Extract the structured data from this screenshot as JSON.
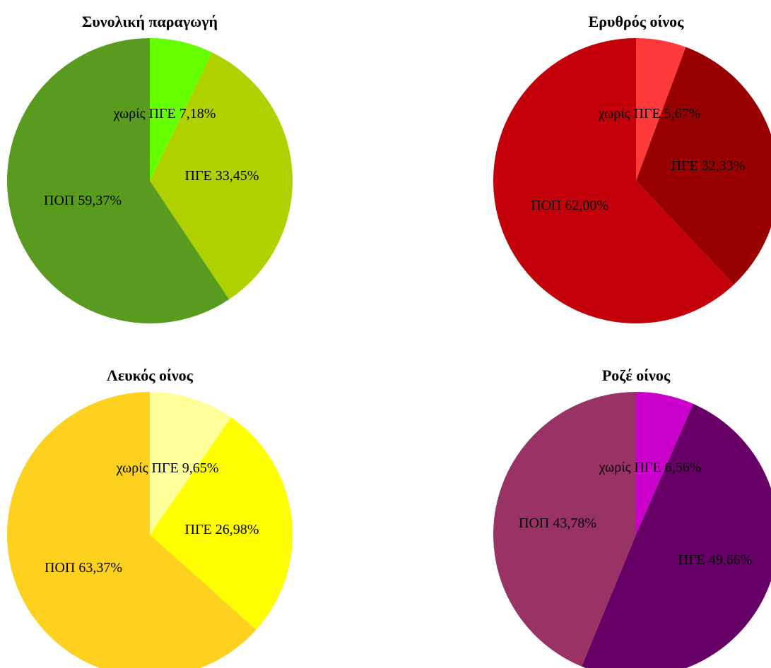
{
  "chart_data": [
    {
      "type": "pie",
      "title": "Συνολική παραγωγή",
      "slices": [
        {
          "label": "χωρίς ΠΓΕ 7,18%",
          "value": 7.18,
          "color": "#66ff00"
        },
        {
          "label": "ΠΓΕ 33,45%",
          "value": 33.45,
          "color": "#b0d100"
        },
        {
          "label": "ΠΟΠ 59,37%",
          "value": 59.37,
          "color": "#589b1e"
        }
      ]
    },
    {
      "type": "pie",
      "title": "Ερυθρός οίνος",
      "slices": [
        {
          "label": "χωρίς ΠΓΕ 5,67%",
          "value": 5.67,
          "color": "#ff3a3a"
        },
        {
          "label": "ΠΓΕ 32,33%",
          "value": 32.33,
          "color": "#990000"
        },
        {
          "label": "ΠΟΠ 62,00%",
          "value": 62.0,
          "color": "#c4000b"
        }
      ]
    },
    {
      "type": "pie",
      "title": "Λευκός οίνος",
      "slices": [
        {
          "label": "χωρίς ΠΓΕ 9,65%",
          "value": 9.65,
          "color": "#ffff99"
        },
        {
          "label": "ΠΓΕ 26,98%",
          "value": 26.98,
          "color": "#ffff00"
        },
        {
          "label": "ΠΟΠ 63,37%",
          "value": 63.37,
          "color": "#ffd11f"
        }
      ]
    },
    {
      "type": "pie",
      "title": "Ροζέ οίνος",
      "slices": [
        {
          "label": "χωρίς ΠΓΕ 6,56%",
          "value": 6.56,
          "color": "#cc00cc"
        },
        {
          "label": "ΠΓΕ 49,66%",
          "value": 49.66,
          "color": "#660066"
        },
        {
          "label": "ΠΟΠ 43,78%",
          "value": 43.78,
          "color": "#993366"
        }
      ]
    }
  ]
}
